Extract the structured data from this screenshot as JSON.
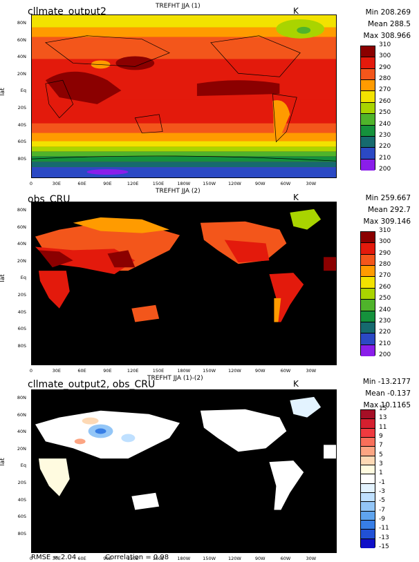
{
  "panels": [
    {
      "name": "cllmate_output2",
      "title": "TREFHT JJA (1)",
      "units": "K",
      "min": "Min 208.269",
      "mean": "Mean 288.5",
      "max": "Max 308.966",
      "colorbar_labels": [
        "310",
        "300",
        "290",
        "280",
        "270",
        "260",
        "250",
        "240",
        "230",
        "220",
        "210",
        "200"
      ],
      "colorbar_colors": [
        "#8b0000",
        "#e31a0c",
        "#f3561b",
        "#ff9b00",
        "#f2e200",
        "#a9d400",
        "#4fb42b",
        "#15913c",
        "#166a6e",
        "#2b49c4",
        "#8a1eea"
      ]
    },
    {
      "name": "obs_CRU",
      "title": "TREFHT JJA (2)",
      "units": "K",
      "min": "Min 259.667",
      "mean": "Mean 292.7",
      "max": "Max 309.146",
      "colorbar_labels": [
        "310",
        "300",
        "290",
        "280",
        "270",
        "260",
        "250",
        "240",
        "230",
        "220",
        "210",
        "200"
      ],
      "colorbar_colors": [
        "#8b0000",
        "#e31a0c",
        "#f3561b",
        "#ff9b00",
        "#f2e200",
        "#a9d400",
        "#4fb42b",
        "#15913c",
        "#166a6e",
        "#2b49c4",
        "#8a1eea"
      ]
    },
    {
      "name": "cllmate_output2, obs_CRU",
      "title": "TREFHT JJA (1)-(2)",
      "units": "K",
      "min": "Min -13.2177",
      "mean": "Mean -0.137",
      "max": "Max 10.1165",
      "colorbar_labels": [
        "15",
        "13",
        "11",
        "9",
        "7",
        "5",
        "3",
        "1",
        "-1",
        "-3",
        "-5",
        "-7",
        "-9",
        "-11",
        "-13",
        "-15"
      ],
      "colorbar_colors": [
        "#a50f26",
        "#d5202f",
        "#ef3a3f",
        "#f86f5a",
        "#fca583",
        "#fdd9b5",
        "#fffbe0",
        "#ffffff",
        "#e3f3ff",
        "#bfe0ff",
        "#93c6f7",
        "#5fa4ee",
        "#377ee6",
        "#2151d6",
        "#1010c8"
      ]
    }
  ],
  "axes": {
    "ylabel": "lat",
    "lat_ticks": [
      "80N",
      "60N",
      "40N",
      "20N",
      "Eq",
      "20S",
      "40S",
      "60S",
      "80S"
    ],
    "lon_ticks": [
      "0",
      "30E",
      "60E",
      "90E",
      "120E",
      "150E",
      "180W",
      "150W",
      "120W",
      "90W",
      "60W",
      "30W"
    ]
  },
  "footer": {
    "rmse": "RMSE = 2.04",
    "correlation": "Correlation = 0.98"
  }
}
